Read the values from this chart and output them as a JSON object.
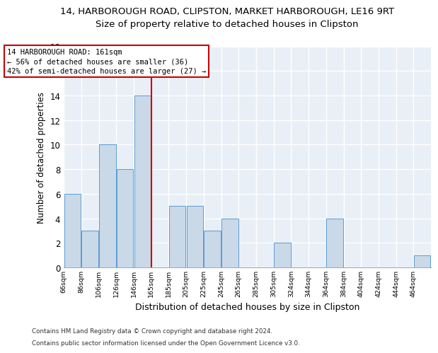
{
  "title1": "14, HARBOROUGH ROAD, CLIPSTON, MARKET HARBOROUGH, LE16 9RT",
  "title2": "Size of property relative to detached houses in Clipston",
  "xlabel": "Distribution of detached houses by size in Clipston",
  "ylabel": "Number of detached properties",
  "categories": [
    "66sqm",
    "86sqm",
    "106sqm",
    "126sqm",
    "146sqm",
    "165sqm",
    "185sqm",
    "205sqm",
    "225sqm",
    "245sqm",
    "265sqm",
    "285sqm",
    "305sqm",
    "324sqm",
    "344sqm",
    "364sqm",
    "384sqm",
    "404sqm",
    "424sqm",
    "444sqm",
    "464sqm"
  ],
  "values": [
    6,
    3,
    10,
    8,
    14,
    0,
    5,
    5,
    3,
    4,
    0,
    0,
    2,
    0,
    0,
    4,
    0,
    0,
    0,
    0,
    1
  ],
  "bar_color": "#c9d9e8",
  "bar_edge_color": "#5b9bd5",
  "property_line_x": 5,
  "property_line_label": "14 HARBOROUGH ROAD: 161sqm",
  "annotation_line1": "← 56% of detached houses are smaller (36)",
  "annotation_line2": "42% of semi-detached houses are larger (27) →",
  "annotation_box_color": "#ffffff",
  "annotation_box_edge": "#cc0000",
  "vline_color": "#cc0000",
  "ylim": [
    0,
    18
  ],
  "yticks": [
    0,
    2,
    4,
    6,
    8,
    10,
    12,
    14,
    16,
    18
  ],
  "footer1": "Contains HM Land Registry data © Crown copyright and database right 2024.",
  "footer2": "Contains public sector information licensed under the Open Government Licence v3.0.",
  "bg_color": "#e8eff6",
  "grid_color": "#ffffff",
  "title1_fontsize": 9.5,
  "title2_fontsize": 9.5,
  "xlabel_fontsize": 9,
  "ylabel_fontsize": 8.5,
  "annot_fontsize": 7.5
}
